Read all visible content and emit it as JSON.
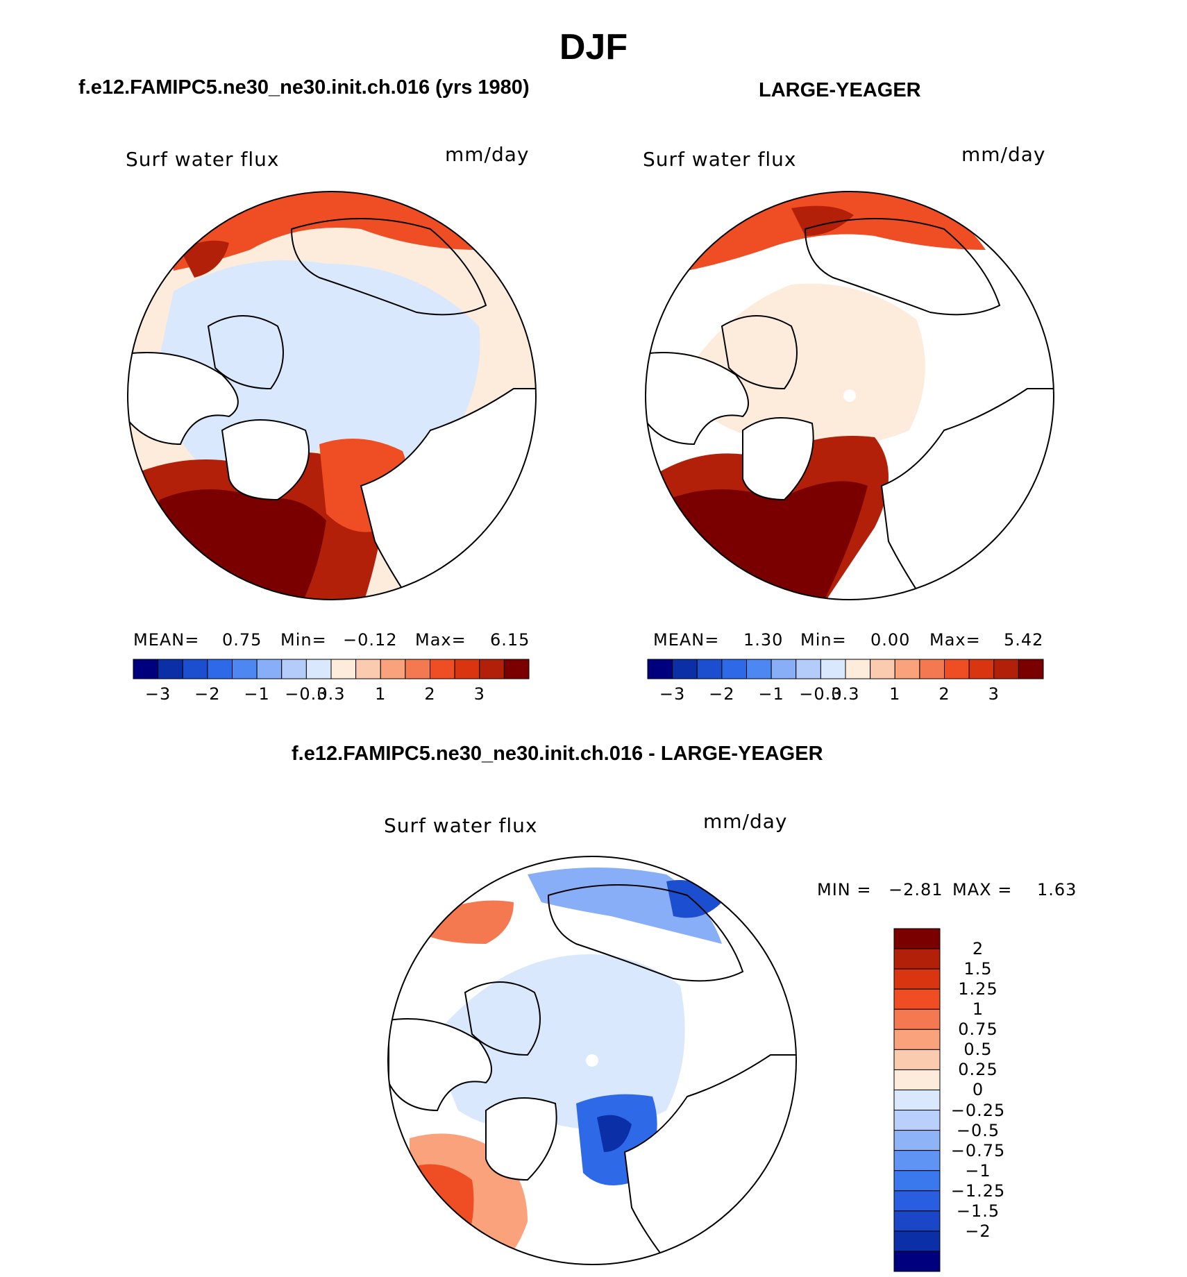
{
  "figure": {
    "title": "DJF",
    "left_title": "f.e12.FAMIPC5.ne30_ne30.init.ch.016 (yrs 1980)",
    "right_title": "LARGE-YEAGER",
    "diff_title": "f.e12.FAMIPC5.ne30_ne30.init.ch.016 - LARGE-YEAGER"
  },
  "colors": {
    "abs_scale": [
      "#00007f",
      "#0a2fa6",
      "#1c4fcf",
      "#2e6ae8",
      "#4d87f2",
      "#87aef6",
      "#b3ccf9",
      "#d9e8fc",
      "#fdebdc",
      "#fbcbb0",
      "#f9a27c",
      "#f57950",
      "#ef4e24",
      "#d93510",
      "#b2200a",
      "#7a0000"
    ],
    "diff_scale": [
      "#00007f",
      "#0a2fa6",
      "#1a46c8",
      "#2a5ee0",
      "#3a78ee",
      "#5f93f4",
      "#8fb3f7",
      "#b8d0fa",
      "#d9e8fc",
      "#fdebdc",
      "#fbcbb0",
      "#f9a27c",
      "#f57950",
      "#ef4e24",
      "#d93510",
      "#b2200a",
      "#7a0000"
    ],
    "land": "#ffffff",
    "coast": "#000000"
  },
  "chart_data": [
    {
      "type": "heatmap",
      "projection": "north-polar-stereographic",
      "panel_id": "model",
      "variable_label": "Surf water flux",
      "units": "mm/day",
      "stats": {
        "mean_label": "MEAN=",
        "mean": "0.75",
        "min_label": "Min=",
        "min": "−0.12",
        "max_label": "Max=",
        "max": "6.15"
      },
      "colorbar": {
        "levels": [
          -3,
          -2.5,
          -2,
          -1.5,
          -1,
          -0.5,
          -0.3,
          0,
          0.3,
          0.5,
          1,
          1.5,
          2,
          2.5,
          3
        ],
        "tick_labels": [
          "−3",
          "−2",
          "−1",
          "−0.3",
          "0.3",
          "1",
          "2",
          "3"
        ],
        "orientation": "horizontal"
      }
    },
    {
      "type": "heatmap",
      "projection": "north-polar-stereographic",
      "panel_id": "obs",
      "variable_label": "Surf water flux",
      "units": "mm/day",
      "stats": {
        "mean_label": "MEAN=",
        "mean": "1.30",
        "min_label": "Min=",
        "min": "0.00",
        "max_label": "Max=",
        "max": "5.42"
      },
      "colorbar": {
        "levels": [
          -3,
          -2.5,
          -2,
          -1.5,
          -1,
          -0.5,
          -0.3,
          0,
          0.3,
          0.5,
          1,
          1.5,
          2,
          2.5,
          3
        ],
        "tick_labels": [
          "−3",
          "−2",
          "−1",
          "−0.3",
          "0.3",
          "1",
          "2",
          "3"
        ],
        "orientation": "horizontal"
      }
    },
    {
      "type": "heatmap",
      "projection": "north-polar-stereographic",
      "panel_id": "difference",
      "variable_label": "Surf water flux",
      "units": "mm/day",
      "stats": {
        "min_label": "MIN =",
        "min": "−2.81",
        "max_label": "MAX =",
        "max": "1.63"
      },
      "colorbar": {
        "levels": [
          2,
          1.5,
          1.25,
          1,
          0.75,
          0.5,
          0.25,
          0,
          -0.25,
          -0.5,
          -0.75,
          -1,
          -1.25,
          -1.5,
          -2
        ],
        "tick_labels": [
          "2",
          "1.5",
          "1.25",
          "1",
          "0.75",
          "0.5",
          "0.25",
          "0",
          "−0.25",
          "−0.5",
          "−0.75",
          "−1",
          "−1.25",
          "−1.5",
          "−2"
        ],
        "orientation": "vertical"
      }
    }
  ]
}
